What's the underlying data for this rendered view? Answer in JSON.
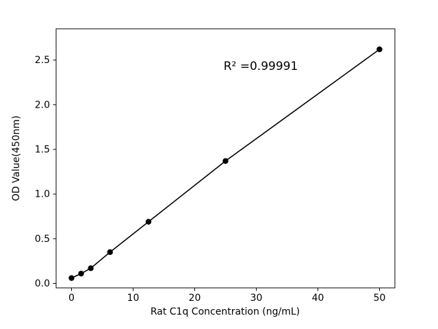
{
  "figure": {
    "background": "#ffffff"
  },
  "chart_data": {
    "type": "scatter",
    "title": "",
    "xlabel": "Rat C1q Concentration (ng/mL)",
    "ylabel": "OD Value(450nm)",
    "annotation": "R² =0.99991",
    "x": [
      0,
      1.5625,
      3.125,
      6.25,
      12.5,
      25,
      50
    ],
    "y": [
      0.06,
      0.11,
      0.17,
      0.35,
      0.69,
      1.37,
      2.62
    ],
    "series": [
      {
        "name": "standard-curve",
        "marker": "circle",
        "line": true,
        "color": "#000000"
      }
    ],
    "xlim": [
      -2.5,
      52.5
    ],
    "ylim": [
      -0.05,
      2.85
    ],
    "xticks": {
      "values": [
        0,
        10,
        20,
        30,
        40,
        50
      ],
      "labels": [
        "0",
        "10",
        "20",
        "30",
        "40",
        "50"
      ]
    },
    "yticks": {
      "values": [
        0,
        0.5,
        1.0,
        1.5,
        2.0,
        2.5
      ],
      "labels": [
        "0.0",
        "0.5",
        "1.0",
        "1.5",
        "2.0",
        "2.5"
      ]
    },
    "grid": false,
    "legend": null,
    "line_color": "#000000",
    "marker_color": "#000000"
  }
}
